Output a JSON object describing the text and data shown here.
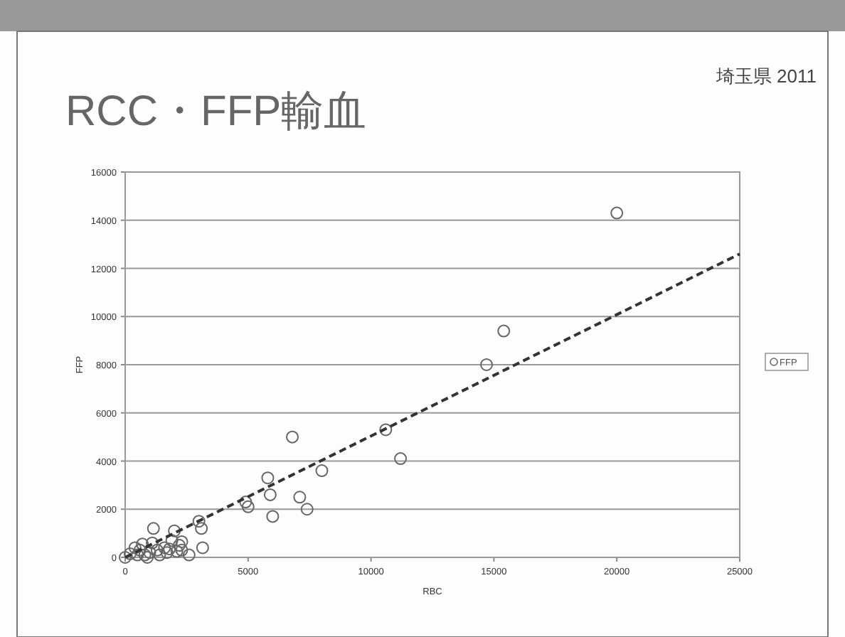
{
  "chart_data": {
    "type": "scatter",
    "title": "RCC・FFP輸血",
    "annotations": [
      "埼玉県 2011"
    ],
    "xlabel": "RBC",
    "ylabel": "FFP",
    "xlim": [
      0,
      25000
    ],
    "ylim": [
      0,
      16000
    ],
    "xticks": [
      0,
      5000,
      10000,
      15000,
      20000,
      25000
    ],
    "yticks": [
      0,
      2000,
      4000,
      6000,
      8000,
      10000,
      12000,
      14000,
      16000
    ],
    "grid": "y",
    "legend": "right",
    "series": [
      {
        "name": "FFP",
        "marker": "circle",
        "color": "#666666",
        "x": [
          20000,
          15400,
          14700,
          10600,
          11200,
          8000,
          6800,
          5800,
          5900,
          7100,
          7400,
          6000,
          4900,
          5000,
          3000,
          3100,
          3150,
          1150,
          2000,
          2300,
          2600,
          2300,
          700,
          400,
          0,
          200,
          500,
          800,
          1000,
          1300,
          1600,
          1800,
          1900,
          2200,
          1400,
          900,
          600,
          1100,
          1700,
          2100
        ],
        "values": [
          14300,
          9400,
          8000,
          5300,
          4100,
          3600,
          5000,
          3300,
          2600,
          2500,
          2000,
          1700,
          2300,
          2100,
          1500,
          1200,
          400,
          1200,
          1100,
          650,
          100,
          300,
          550,
          400,
          0,
          150,
          100,
          100,
          200,
          300,
          400,
          350,
          700,
          500,
          100,
          0,
          300,
          600,
          200,
          250
        ]
      },
      {
        "type": "line",
        "line_style": "dashed",
        "color": "#333333",
        "x": [
          0,
          25000
        ],
        "values": [
          0,
          12600
        ]
      }
    ]
  }
}
